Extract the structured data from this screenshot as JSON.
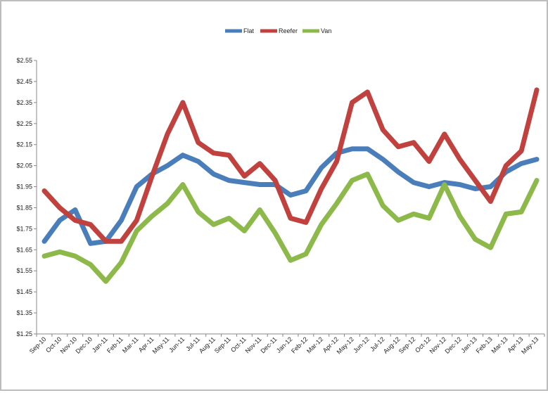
{
  "chart_data": {
    "type": "line",
    "title": "",
    "xlabel": "",
    "ylabel": "",
    "ylim": [
      1.25,
      2.55
    ],
    "y_ticks": [
      "$1.25",
      "$1.35",
      "$1.45",
      "$1.55",
      "$1.65",
      "$1.75",
      "$1.85",
      "$1.95",
      "$2.05",
      "$2.15",
      "$2.25",
      "$2.35",
      "$2.45",
      "$2.55"
    ],
    "y_tick_values": [
      1.25,
      1.35,
      1.45,
      1.55,
      1.65,
      1.75,
      1.85,
      1.95,
      2.05,
      2.15,
      2.25,
      2.35,
      2.45,
      2.55
    ],
    "legend_position": "top-center",
    "grid": false,
    "categories": [
      "Sep-10",
      "Oct-10",
      "Nov-10",
      "Dec-10",
      "Jan-11",
      "Feb-11",
      "Mar-11",
      "Apr-11",
      "May-11",
      "Jun-11",
      "Jul-11",
      "Aug-11",
      "Sep-11",
      "Oct-11",
      "Nov-11",
      "Dec-11",
      "Jan-12",
      "Feb-12",
      "Mar-12",
      "Apr-12",
      "May-12",
      "Jun-12",
      "Jul-12",
      "Aug-12",
      "Sep-12",
      "Oct-12",
      "Nov-12",
      "Dec-12",
      "Jan-13",
      "Feb-13",
      "Mar-13",
      "Apr-13",
      "May-13"
    ],
    "series": [
      {
        "name": "Flat",
        "color": "#4a7ebb",
        "values": [
          1.69,
          1.79,
          1.84,
          1.68,
          1.69,
          1.79,
          1.95,
          2.01,
          2.05,
          2.1,
          2.07,
          2.01,
          1.98,
          1.97,
          1.96,
          1.96,
          1.91,
          1.93,
          2.04,
          2.11,
          2.13,
          2.13,
          2.08,
          2.02,
          1.97,
          1.95,
          1.97,
          1.96,
          1.94,
          1.95,
          2.02,
          2.06,
          2.08
        ]
      },
      {
        "name": "Reefer",
        "color": "#c0413e",
        "values": [
          1.93,
          1.85,
          1.79,
          1.77,
          1.69,
          1.69,
          1.79,
          2.0,
          2.2,
          2.35,
          2.16,
          2.11,
          2.1,
          2.0,
          2.06,
          1.98,
          1.8,
          1.78,
          1.94,
          2.07,
          2.35,
          2.4,
          2.22,
          2.14,
          2.16,
          2.07,
          2.2,
          2.08,
          1.98,
          1.88,
          2.05,
          2.12,
          2.41
        ]
      },
      {
        "name": "Van",
        "color": "#8db84a",
        "values": [
          1.62,
          1.64,
          1.62,
          1.58,
          1.5,
          1.59,
          1.74,
          1.81,
          1.87,
          1.96,
          1.83,
          1.77,
          1.8,
          1.74,
          1.84,
          1.73,
          1.6,
          1.63,
          1.77,
          1.87,
          1.98,
          2.01,
          1.86,
          1.79,
          1.82,
          1.8,
          1.96,
          1.81,
          1.7,
          1.66,
          1.82,
          1.83,
          1.98
        ]
      }
    ]
  }
}
